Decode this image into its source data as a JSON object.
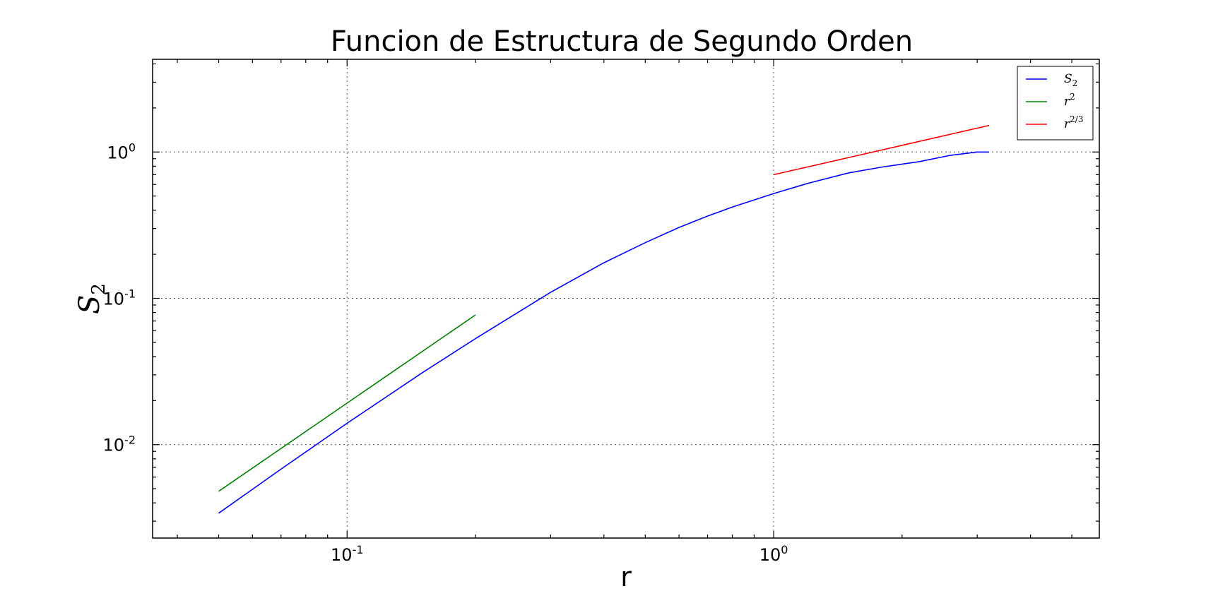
{
  "chart_data": {
    "type": "line",
    "title": "Funcion de Estructura de Segundo Orden",
    "xlabel": "r",
    "ylabel": {
      "base": "S",
      "sub": "2"
    },
    "xscale": "log",
    "yscale": "log",
    "xlim": [
      0.035,
      5.8
    ],
    "ylim": [
      0.0023,
      4.3
    ],
    "grid": true,
    "legend_position": "top-right",
    "x_ticks": [
      {
        "value": 0.1,
        "base": "10",
        "exp": "-1"
      },
      {
        "value": 1,
        "base": "10",
        "exp": "0"
      }
    ],
    "y_ticks": [
      {
        "value": 0.01,
        "base": "10",
        "exp": "-2"
      },
      {
        "value": 0.1,
        "base": "10",
        "exp": "-1"
      },
      {
        "value": 1,
        "base": "10",
        "exp": "0"
      }
    ],
    "series": [
      {
        "name": {
          "base": "S",
          "sub": "2",
          "sup": ""
        },
        "color": "#0000ff",
        "x": [
          0.05,
          0.07,
          0.1,
          0.15,
          0.2,
          0.3,
          0.4,
          0.5,
          0.6,
          0.7,
          0.8,
          1.0,
          1.2,
          1.5,
          1.8,
          2.2,
          2.6,
          3.0,
          3.2
        ],
        "y": [
          0.0034,
          0.0068,
          0.014,
          0.031,
          0.053,
          0.11,
          0.175,
          0.24,
          0.305,
          0.365,
          0.42,
          0.52,
          0.61,
          0.72,
          0.79,
          0.86,
          0.95,
          1.0,
          1.0
        ]
      },
      {
        "name": {
          "base": "r",
          "sub": "",
          "sup": "2"
        },
        "color": "#008000",
        "x": [
          0.05,
          0.2
        ],
        "y": [
          0.0048,
          0.077
        ]
      },
      {
        "name": {
          "base": "r",
          "sub": "",
          "sup": "2/3"
        },
        "color": "#ff0000",
        "x": [
          1.0,
          3.2
        ],
        "y": [
          0.7,
          1.52
        ]
      }
    ]
  }
}
